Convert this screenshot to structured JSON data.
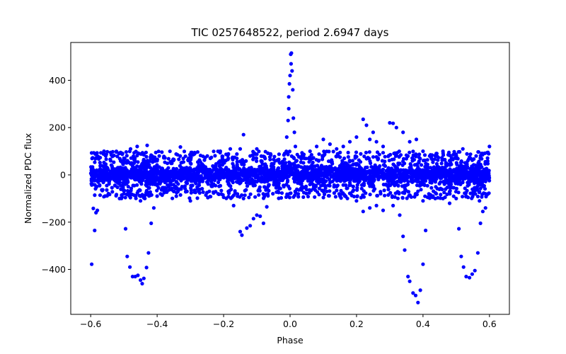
{
  "chart_data": {
    "type": "scatter",
    "title": "TIC 0257648522, period 2.6947 days",
    "xlabel": "Phase",
    "ylabel": "Normalized PDC flux",
    "xlim": [
      -0.66,
      0.66
    ],
    "ylim": [
      -590,
      560
    ],
    "xticks": [
      -0.6,
      -0.4,
      -0.2,
      0.0,
      0.2,
      0.4,
      0.6
    ],
    "xtick_labels": [
      "−0.6",
      "−0.4",
      "−0.2",
      "0.0",
      "0.2",
      "0.4",
      "0.6"
    ],
    "yticks": [
      -400,
      -200,
      0,
      200,
      400
    ],
    "ytick_labels": [
      "−400",
      "−200",
      "0",
      "200",
      "400"
    ],
    "grid": false,
    "marker_color": "#0000ff",
    "series": [
      {
        "name": "flux",
        "description": "phase-folded light curve, dense band near zero with scattered outliers",
        "points": [
          [
            -0.597,
            -378
          ],
          [
            -0.592,
            -142
          ],
          [
            -0.588,
            -235
          ],
          [
            -0.584,
            -160
          ],
          [
            -0.58,
            -150
          ],
          [
            -0.594,
            72
          ],
          [
            -0.586,
            88
          ],
          [
            -0.572,
            52
          ],
          [
            -0.56,
            100
          ],
          [
            -0.55,
            98
          ],
          [
            -0.54,
            60
          ],
          [
            -0.53,
            82
          ],
          [
            -0.52,
            78
          ],
          [
            -0.51,
            95
          ],
          [
            -0.5,
            62
          ],
          [
            -0.495,
            -228
          ],
          [
            -0.49,
            -345
          ],
          [
            -0.482,
            -390
          ],
          [
            -0.474,
            -430
          ],
          [
            -0.466,
            -430
          ],
          [
            -0.458,
            -425
          ],
          [
            -0.45,
            -445
          ],
          [
            -0.445,
            -460
          ],
          [
            -0.44,
            -438
          ],
          [
            -0.432,
            -392
          ],
          [
            -0.426,
            -330
          ],
          [
            -0.418,
            -205
          ],
          [
            -0.41,
            -140
          ],
          [
            -0.48,
            110
          ],
          [
            -0.46,
            120
          ],
          [
            -0.44,
            85
          ],
          [
            -0.43,
            125
          ],
          [
            -0.42,
            75
          ],
          [
            -0.4,
            60
          ],
          [
            -0.38,
            72
          ],
          [
            -0.36,
            55
          ],
          [
            -0.33,
            118
          ],
          [
            -0.3,
            50
          ],
          [
            -0.27,
            55
          ],
          [
            -0.24,
            70
          ],
          [
            -0.21,
            100
          ],
          [
            -0.18,
            110
          ],
          [
            -0.16,
            88
          ],
          [
            -0.15,
            110
          ],
          [
            -0.15,
            -240
          ],
          [
            -0.145,
            -255
          ],
          [
            -0.14,
            170
          ],
          [
            -0.13,
            -225
          ],
          [
            -0.12,
            -215
          ],
          [
            -0.11,
            -185
          ],
          [
            -0.1,
            -170
          ],
          [
            -0.09,
            -175
          ],
          [
            -0.08,
            -205
          ],
          [
            -0.07,
            -135
          ],
          [
            -0.12,
            80
          ],
          [
            -0.1,
            110
          ],
          [
            -0.08,
            78
          ],
          [
            -0.06,
            65
          ],
          [
            -0.5,
            -80
          ],
          [
            -0.45,
            -110
          ],
          [
            -0.4,
            -90
          ],
          [
            -0.35,
            -70
          ],
          [
            -0.3,
            -110
          ],
          [
            -0.25,
            -75
          ],
          [
            -0.2,
            -95
          ],
          [
            -0.17,
            -130
          ],
          [
            -0.14,
            -100
          ],
          [
            -0.01,
            160
          ],
          [
            -0.006,
            230
          ],
          [
            -0.004,
            280
          ],
          [
            -0.002,
            385
          ],
          [
            0.0,
            420
          ],
          [
            0.002,
            510
          ],
          [
            0.004,
            515
          ],
          [
            0.006,
            440
          ],
          [
            0.008,
            360
          ],
          [
            0.01,
            240
          ],
          [
            0.013,
            180
          ],
          [
            0.016,
            120
          ],
          [
            -0.004,
            330
          ],
          [
            0.003,
            470
          ],
          [
            0.02,
            60
          ],
          [
            0.04,
            80
          ],
          [
            0.06,
            100
          ],
          [
            0.08,
            120
          ],
          [
            0.1,
            150
          ],
          [
            0.12,
            130
          ],
          [
            0.14,
            110
          ],
          [
            0.16,
            120
          ],
          [
            0.18,
            140
          ],
          [
            0.2,
            160
          ],
          [
            0.22,
            235
          ],
          [
            0.23,
            210
          ],
          [
            0.24,
            150
          ],
          [
            0.25,
            180
          ],
          [
            0.26,
            140
          ],
          [
            0.28,
            120
          ],
          [
            0.3,
            220
          ],
          [
            0.31,
            218
          ],
          [
            0.32,
            200
          ],
          [
            0.34,
            180
          ],
          [
            0.36,
            140
          ],
          [
            0.38,
            150
          ],
          [
            0.4,
            100
          ],
          [
            0.42,
            80
          ],
          [
            0.44,
            90
          ],
          [
            0.46,
            100
          ],
          [
            0.48,
            60
          ],
          [
            0.5,
            70
          ],
          [
            0.52,
            110
          ],
          [
            0.54,
            75
          ],
          [
            0.56,
            80
          ],
          [
            0.58,
            90
          ],
          [
            0.6,
            120
          ],
          [
            0.1,
            -70
          ],
          [
            0.15,
            -90
          ],
          [
            0.2,
            -110
          ],
          [
            0.22,
            -155
          ],
          [
            0.24,
            -140
          ],
          [
            0.26,
            -130
          ],
          [
            0.28,
            -150
          ],
          [
            0.31,
            -130
          ],
          [
            0.33,
            -170
          ],
          [
            0.34,
            -260
          ],
          [
            0.345,
            -318
          ],
          [
            0.355,
            -430
          ],
          [
            0.36,
            -450
          ],
          [
            0.37,
            -500
          ],
          [
            0.378,
            -510
          ],
          [
            0.385,
            -540
          ],
          [
            0.392,
            -488
          ],
          [
            0.4,
            -378
          ],
          [
            0.408,
            -235
          ],
          [
            0.4,
            -110
          ],
          [
            0.43,
            -90
          ],
          [
            0.46,
            -100
          ],
          [
            0.48,
            -120
          ],
          [
            0.5,
            -100
          ],
          [
            0.508,
            -228
          ],
          [
            0.515,
            -345
          ],
          [
            0.522,
            -390
          ],
          [
            0.53,
            -430
          ],
          [
            0.54,
            -435
          ],
          [
            0.548,
            -420
          ],
          [
            0.556,
            -405
          ],
          [
            0.565,
            -330
          ],
          [
            0.573,
            -205
          ],
          [
            0.58,
            -155
          ],
          [
            0.588,
            -140
          ],
          [
            0.596,
            -80
          ],
          [
            0.55,
            -75
          ],
          [
            0.53,
            -90
          ],
          [
            0.57,
            -110
          ]
        ],
        "core_band": {
          "x_range": [
            -0.6,
            0.6
          ],
          "y_range": [
            -55,
            55
          ]
        }
      }
    ]
  }
}
